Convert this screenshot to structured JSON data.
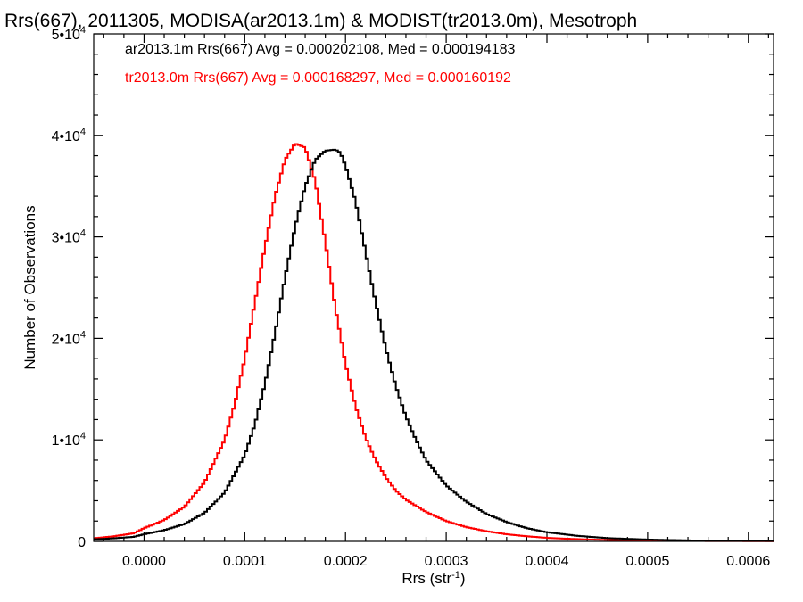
{
  "chart_data": {
    "type": "line",
    "title": "Rrs(667), 2011305, MODISA(ar2013.1m) & MODIST(tr2013.0m), Mesotroph",
    "xlabel_base": "Rrs (str",
    "xlabel_exp": "-1",
    "xlabel_close": ")",
    "ylabel": "Number of Observations",
    "xlim": [
      -5e-05,
      0.000625
    ],
    "ylim": [
      0,
      50000
    ],
    "x_ticks": [
      0.0,
      0.0001,
      0.0002,
      0.0003,
      0.0004,
      0.0005,
      0.0006
    ],
    "x_tick_labels": [
      "0.0000",
      "0.0001",
      "0.0002",
      "0.0003",
      "0.0004",
      "0.0005",
      "0.0006"
    ],
    "y_ticks": [
      {
        "value": 0,
        "mant": "0",
        "exp": ""
      },
      {
        "value": 10000,
        "mant": "1•10",
        "exp": "4"
      },
      {
        "value": 20000,
        "mant": "2•10",
        "exp": "4"
      },
      {
        "value": 30000,
        "mant": "3•10",
        "exp": "4"
      },
      {
        "value": 40000,
        "mant": "4•10",
        "exp": "4"
      },
      {
        "value": 50000,
        "mant": "5•10",
        "exp": "4"
      }
    ],
    "series": [
      {
        "name": "ar2013.1m",
        "color": "#000000",
        "legend": "ar2013.1m Rrs(667) Avg = 0.000202108, Med = 0.000194183",
        "x": [
          -5e-05,
          -3e-05,
          -1e-05,
          0.0,
          2e-05,
          4e-05,
          6e-05,
          8e-05,
          0.0001,
          0.00011,
          0.00012,
          0.00013,
          0.00014,
          0.00015,
          0.00016,
          0.00017,
          0.00018,
          0.00019,
          0.000195,
          0.0002,
          0.00021,
          0.00022,
          0.00023,
          0.00024,
          0.00025,
          0.00026,
          0.00027,
          0.00028,
          0.0003,
          0.00032,
          0.00034,
          0.00036,
          0.00038,
          0.0004,
          0.00043,
          0.00046,
          0.0005,
          0.00055,
          0.000625
        ],
        "y": [
          200,
          300,
          450,
          700,
          1100,
          1700,
          2800,
          4800,
          8500,
          11500,
          15500,
          20500,
          26000,
          31000,
          35000,
          37600,
          38500,
          38600,
          38300,
          37000,
          33500,
          28500,
          23500,
          19000,
          15300,
          12300,
          10000,
          8000,
          5500,
          3900,
          2700,
          1900,
          1300,
          900,
          550,
          320,
          180,
          80,
          40
        ]
      },
      {
        "name": "tr2013.0m",
        "color": "#ff0000",
        "legend": "tr2013.0m Rrs(667) Avg = 0.000168297, Med = 0.000160192",
        "x": [
          -5e-05,
          -3e-05,
          -1e-05,
          0.0,
          2e-05,
          4e-05,
          6e-05,
          8e-05,
          9e-05,
          0.0001,
          0.00011,
          0.00012,
          0.00013,
          0.00014,
          0.00015,
          0.00016,
          0.00017,
          0.00018,
          0.00019,
          0.0002,
          0.00021,
          0.00022,
          0.00023,
          0.00024,
          0.00025,
          0.00026,
          0.00028,
          0.0003,
          0.00032,
          0.00034,
          0.00036,
          0.00038,
          0.0004,
          0.00043,
          0.00046,
          0.0005,
          0.00055,
          0.000625
        ],
        "y": [
          300,
          500,
          800,
          1300,
          2100,
          3400,
          5800,
          10000,
          13500,
          18000,
          23500,
          29000,
          34000,
          37600,
          39200,
          38800,
          35500,
          29500,
          23000,
          17500,
          13300,
          10200,
          8000,
          6300,
          5000,
          4100,
          2900,
          2000,
          1400,
          1000,
          700,
          500,
          350,
          220,
          140,
          80,
          40,
          20
        ]
      }
    ]
  }
}
